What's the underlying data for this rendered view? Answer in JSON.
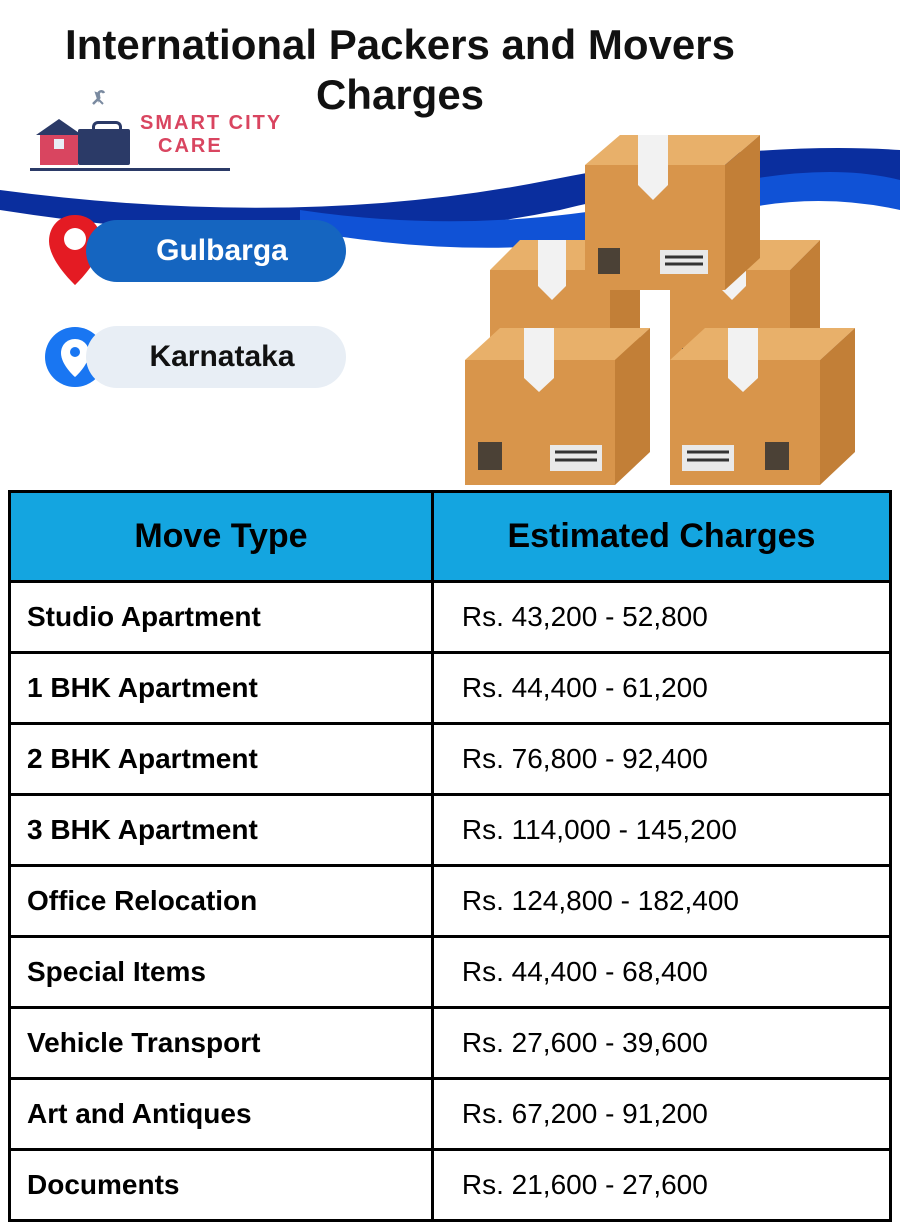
{
  "title": "International Packers and Movers Charges",
  "logo": {
    "line1": "SMART CITY",
    "line2": "CARE",
    "brand_color": "#d94560",
    "accent_color": "#2b3a67"
  },
  "swoosh": {
    "color1": "#0a2e9e",
    "color2": "#1052d6"
  },
  "boxes_illustration": {
    "box_face": "#d8954b",
    "box_top": "#e8b06a",
    "box_side": "#c27f37",
    "tape": "#f2f2f2",
    "label_bg": "#e9e9e9"
  },
  "locations": {
    "city": {
      "label": "Gulbarga",
      "pill_bg": "#1565c0",
      "pill_text": "#ffffff",
      "pin_color": "#e41b23"
    },
    "state": {
      "label": "Karnataka",
      "pill_bg": "#e8eef5",
      "pill_text": "#111111",
      "pin_color": "#1976f2"
    }
  },
  "table": {
    "header_bg": "#14a5e0",
    "border_color": "#000000",
    "columns": [
      "Move Type",
      "Estimated Charges"
    ],
    "col_widths": [
      "48%",
      "52%"
    ],
    "rows": [
      [
        "Studio Apartment",
        "Rs. 43,200 - 52,800"
      ],
      [
        "1 BHK Apartment",
        "Rs. 44,400 - 61,200"
      ],
      [
        "2 BHK Apartment",
        "Rs. 76,800 - 92,400"
      ],
      [
        "3 BHK Apartment",
        "Rs. 114,000 - 145,200"
      ],
      [
        "Office Relocation",
        "Rs. 124,800 - 182,400"
      ],
      [
        "Special Items",
        "Rs. 44,400 - 68,400"
      ],
      [
        "Vehicle Transport",
        "Rs. 27,600 - 39,600"
      ],
      [
        "Art and Antiques",
        "Rs. 67,200 - 91,200"
      ],
      [
        "Documents",
        "Rs. 21,600 - 27,600"
      ]
    ],
    "type_fontsize": 28,
    "type_fontweight": 600,
    "charge_fontsize": 28,
    "charge_fontweight": 400
  }
}
